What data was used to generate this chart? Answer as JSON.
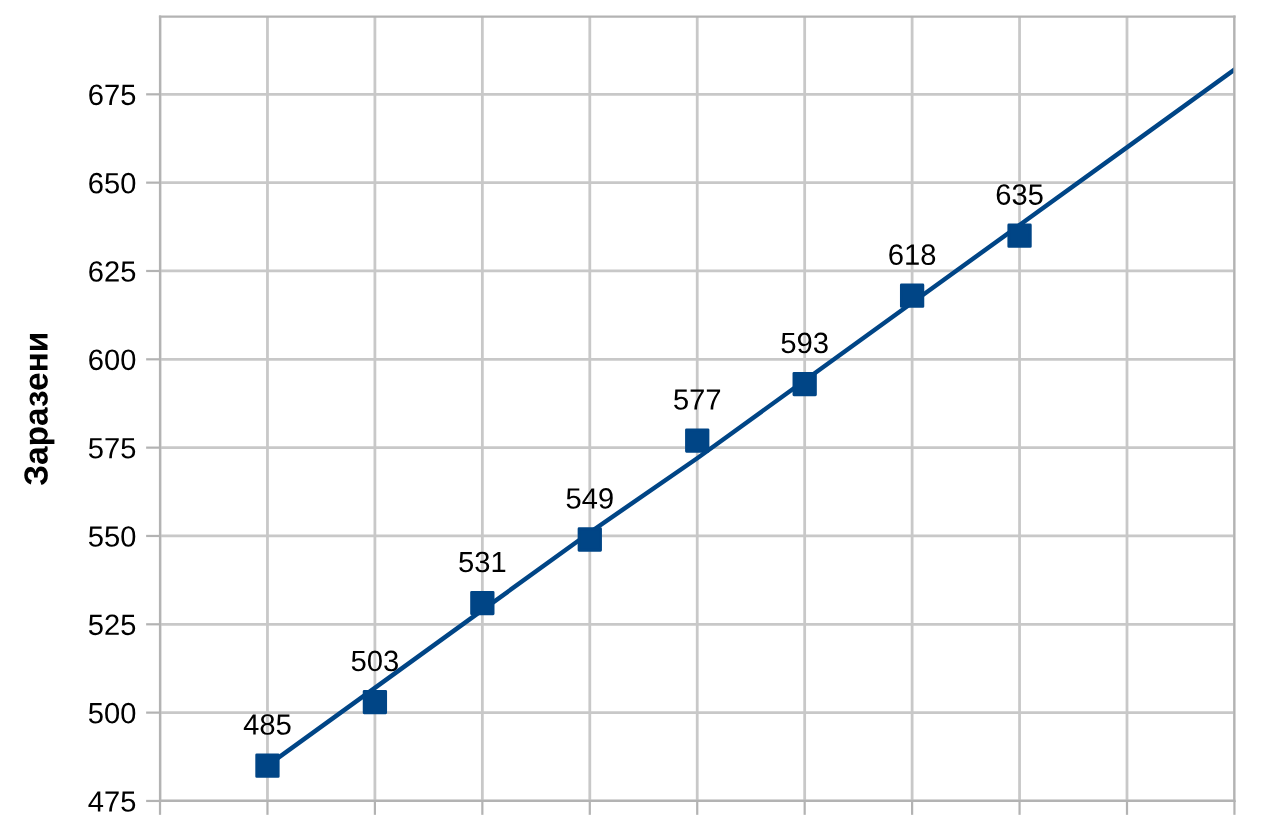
{
  "chart_data": {
    "type": "scatter",
    "ylabel": "Заразени",
    "categories": [
      null,
      null,
      null,
      null,
      null,
      null,
      null,
      null,
      null,
      null,
      null
    ],
    "series": [
      {
        "color": "#004586",
        "marker": "square",
        "values": [
          null,
          485,
          503,
          531,
          549,
          577,
          593,
          618,
          635,
          null,
          null
        ],
        "value_labels": [
          null,
          "485",
          "503",
          "531",
          "549",
          "577",
          "593",
          "618",
          "635",
          null,
          null
        ]
      },
      {
        "type": "line",
        "color": "#004586",
        "marker": "none",
        "values": [
          null,
          485,
          507,
          529,
          551,
          572,
          594,
          616,
          638,
          660,
          682
        ]
      }
    ],
    "ylim": [
      475,
      697
    ],
    "yticks": [
      475,
      500,
      525,
      550,
      575,
      600,
      625,
      650,
      675
    ],
    "tick_labels": "y",
    "grid": true
  }
}
